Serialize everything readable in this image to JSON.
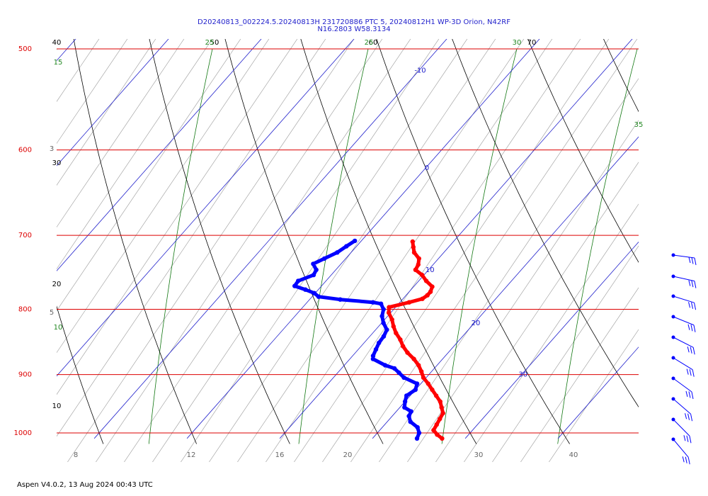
{
  "header": {
    "title_line1": "D20240813_002224.5.20240813H 231720886 PTC 5, 20240812H1 WP-3D Orion, N42RF",
    "title_line2": "N16.2803 W58.3134"
  },
  "footer": {
    "text": "Aspen V4.0.2, 13 Aug 2024  00:43 UTC"
  },
  "colors": {
    "temperature": "#ff0000",
    "dewpoint": "#0000ff",
    "isobar": "#dd0000",
    "isotherm": "#2222cc",
    "dry_adiabat": "#000000",
    "moist_adiabat": "#999999",
    "mixing_ratio": "#117711"
  },
  "chart_data": {
    "type": "line",
    "chart_kind": "skew-t log-p",
    "title": "D20240813_002224.5.20240813H 231720886 PTC 5, 20240812H1 WP-3D Orion, N42RF",
    "subtitle": "N16.2803 W58.3134",
    "pressure_ticks": [
      "500",
      "600",
      "700",
      "800",
      "900",
      "1000"
    ],
    "pressure_values": [
      500,
      600,
      700,
      800,
      900,
      1000
    ],
    "ylim": [
      1010,
      500
    ],
    "y_scale": "log",
    "bottom_temp_ticks": [
      "8",
      "12",
      "16",
      "20",
      "30",
      "40"
    ],
    "bottom_temp_values": [
      8,
      12,
      16,
      20,
      30,
      40
    ],
    "isotherm_labels": [
      {
        "text": "-10",
        "t": -10,
        "p": 520
      },
      {
        "text": "0",
        "t": 0,
        "p": 620
      },
      {
        "text": "10",
        "t": 10,
        "p": 745
      },
      {
        "text": "20",
        "t": 20,
        "p": 820
      },
      {
        "text": "30",
        "t": 30,
        "p": 900
      }
    ],
    "dry_adiabat_labels": [
      {
        "text": "40",
        "p": 500
      },
      {
        "text": "50",
        "p": 500
      },
      {
        "text": "60",
        "p": 500
      },
      {
        "text": "70",
        "p": 500
      },
      {
        "text": "30",
        "p": 616
      },
      {
        "text": "20",
        "p": 790
      },
      {
        "text": "10",
        "p": 950
      }
    ],
    "mixing_ratio_labels": [
      {
        "text": "15",
        "p": 512
      },
      {
        "text": "25",
        "p": 500
      },
      {
        "text": "25",
        "p": 500
      },
      {
        "text": "30",
        "p": 500
      },
      {
        "text": "35",
        "p": 578
      },
      {
        "text": "10",
        "p": 822
      }
    ],
    "moist_adiabat_labels": [
      {
        "text": "3",
        "p": 600
      },
      {
        "text": "5",
        "p": 805
      }
    ],
    "series": [
      {
        "variable": "temperature",
        "points": [
          {
            "p": 1010,
            "t": 27.5
          },
          {
            "p": 1003,
            "t": 26.6
          },
          {
            "p": 995,
            "t": 25.8
          },
          {
            "p": 985,
            "t": 25.6
          },
          {
            "p": 975,
            "t": 25.4
          },
          {
            "p": 965,
            "t": 25.2
          },
          {
            "p": 955,
            "t": 24.5
          },
          {
            "p": 945,
            "t": 23.8
          },
          {
            "p": 935,
            "t": 22.8
          },
          {
            "p": 925,
            "t": 21.8
          },
          {
            "p": 915,
            "t": 20.8
          },
          {
            "p": 905,
            "t": 19.7
          },
          {
            "p": 895,
            "t": 18.9
          },
          {
            "p": 885,
            "t": 18.0
          },
          {
            "p": 875,
            "t": 16.9
          },
          {
            "p": 865,
            "t": 15.6
          },
          {
            "p": 855,
            "t": 14.5
          },
          {
            "p": 845,
            "t": 13.6
          },
          {
            "p": 835,
            "t": 12.5
          },
          {
            "p": 825,
            "t": 11.6
          },
          {
            "p": 815,
            "t": 10.8
          },
          {
            "p": 805,
            "t": 9.8
          },
          {
            "p": 797,
            "t": 9.3
          },
          {
            "p": 790,
            "t": 11.0
          },
          {
            "p": 785,
            "t": 12.1
          },
          {
            "p": 780,
            "t": 12.3
          },
          {
            "p": 775,
            "t": 12.3
          },
          {
            "p": 768,
            "t": 12.0
          },
          {
            "p": 760,
            "t": 10.8
          },
          {
            "p": 752,
            "t": 9.8
          },
          {
            "p": 745,
            "t": 8.6
          },
          {
            "p": 738,
            "t": 8.4
          },
          {
            "p": 730,
            "t": 7.9
          },
          {
            "p": 722,
            "t": 6.8
          },
          {
            "p": 715,
            "t": 6.2
          },
          {
            "p": 708,
            "t": 5.6
          }
        ]
      },
      {
        "variable": "dewpoint",
        "points": [
          {
            "p": 1010,
            "t": 24.8
          },
          {
            "p": 1000,
            "t": 24.5
          },
          {
            "p": 990,
            "t": 23.8
          },
          {
            "p": 980,
            "t": 22.5
          },
          {
            "p": 970,
            "t": 21.8
          },
          {
            "p": 962,
            "t": 21.6
          },
          {
            "p": 955,
            "t": 20.5
          },
          {
            "p": 945,
            "t": 20.0
          },
          {
            "p": 935,
            "t": 19.6
          },
          {
            "p": 925,
            "t": 20.0
          },
          {
            "p": 915,
            "t": 19.6
          },
          {
            "p": 905,
            "t": 17.6
          },
          {
            "p": 897,
            "t": 16.6
          },
          {
            "p": 890,
            "t": 15.7
          },
          {
            "p": 885,
            "t": 14.4
          },
          {
            "p": 875,
            "t": 12.5
          },
          {
            "p": 870,
            "t": 12.2
          },
          {
            "p": 860,
            "t": 11.9
          },
          {
            "p": 850,
            "t": 11.6
          },
          {
            "p": 840,
            "t": 11.5
          },
          {
            "p": 830,
            "t": 11.2
          },
          {
            "p": 820,
            "t": 10.2
          },
          {
            "p": 810,
            "t": 9.4
          },
          {
            "p": 800,
            "t": 8.9
          },
          {
            "p": 792,
            "t": 8.1
          },
          {
            "p": 790,
            "t": 7.1
          },
          {
            "p": 786,
            "t": 3.3
          },
          {
            "p": 782,
            "t": 0.7
          },
          {
            "p": 777,
            "t": -0.1
          },
          {
            "p": 772,
            "t": -1.4
          },
          {
            "p": 767,
            "t": -2.9
          },
          {
            "p": 760,
            "t": -3.0
          },
          {
            "p": 752,
            "t": -1.9
          },
          {
            "p": 745,
            "t": -2.1
          },
          {
            "p": 737,
            "t": -3.0
          },
          {
            "p": 730,
            "t": -2.3
          },
          {
            "p": 722,
            "t": -1.5
          },
          {
            "p": 714,
            "t": -1.1
          },
          {
            "p": 707,
            "t": -0.7
          }
        ]
      }
    ],
    "wind_barbs": [
      {
        "p": 710
      },
      {
        "p": 745
      },
      {
        "p": 775
      },
      {
        "p": 805
      },
      {
        "p": 840
      },
      {
        "p": 875
      },
      {
        "p": 910
      },
      {
        "p": 945
      },
      {
        "p": 975
      },
      {
        "p": 1005
      }
    ]
  }
}
